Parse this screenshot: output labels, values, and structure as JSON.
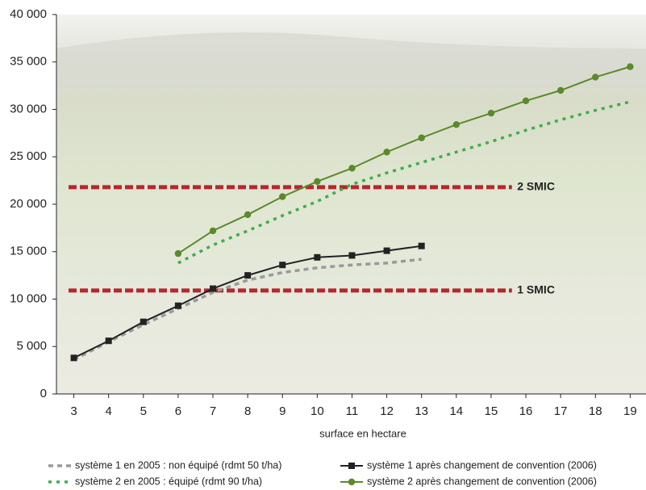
{
  "chart_data": {
    "type": "line",
    "x_label": "surface en hectare",
    "xlim": [
      2.5,
      19.2
    ],
    "xticks": [
      3,
      4,
      5,
      6,
      7,
      8,
      9,
      10,
      11,
      12,
      13,
      14,
      15,
      16,
      17,
      18,
      19
    ],
    "ylim": [
      0,
      40000
    ],
    "yticks": [
      0,
      {
        "value": 5000,
        "label": "5 000"
      },
      {
        "value": 10000,
        "label": "10 000"
      },
      {
        "value": 15000,
        "label": "15 000"
      },
      {
        "value": 20000,
        "label": "20 000"
      },
      {
        "value": 25000,
        "label": "25 000"
      },
      {
        "value": 30000,
        "label": "30 000"
      },
      {
        "value": 35000,
        "label": "35 000"
      },
      {
        "value": 40000,
        "label": "40 000"
      }
    ],
    "reference_lines": [
      {
        "label": "2 SMIC",
        "value": 21800,
        "color": "#b8262c"
      },
      {
        "label": "1 SMIC",
        "value": 10900,
        "color": "#b8262c"
      }
    ],
    "series": [
      {
        "name": "système 1 en 2005 : non équipé (rdmt 50 t/ha)",
        "color": "#9a9a9a",
        "dash": "6 5",
        "marker": "none",
        "x": [
          3,
          4,
          5,
          6,
          7,
          8,
          9,
          10,
          11,
          12,
          13
        ],
        "values": [
          3600,
          5500,
          7300,
          9000,
          10700,
          12000,
          12800,
          13300,
          13600,
          13800,
          14200
        ]
      },
      {
        "name": "système 2 en 2005 : équipé (rdmt 90 t/ha)",
        "color": "#3fae49",
        "dash": "4 6",
        "marker": "none",
        "x": [
          6,
          7,
          8,
          9,
          10,
          11,
          12,
          13,
          14,
          15,
          16,
          17,
          18,
          19
        ],
        "values": [
          13800,
          15700,
          17200,
          18800,
          20300,
          22100,
          23300,
          24400,
          25500,
          26600,
          27800,
          28900,
          29900,
          30800
        ]
      },
      {
        "name": "système 1 après changement de convention (2006)",
        "color": "#222222",
        "dash": "none",
        "marker": "square",
        "x": [
          3,
          4,
          5,
          6,
          7,
          8,
          9,
          10,
          11,
          12,
          13
        ],
        "values": [
          3800,
          5600,
          7600,
          9300,
          11100,
          12500,
          13600,
          14400,
          14600,
          15100,
          15600
        ]
      },
      {
        "name": "système 2 après changement de convention (2006)",
        "color": "#5a8a2a",
        "dash": "none",
        "marker": "circle",
        "x": [
          6,
          7,
          8,
          9,
          10,
          11,
          12,
          13,
          14,
          15,
          16,
          17,
          18,
          19
        ],
        "values": [
          14800,
          17200,
          18900,
          20800,
          22400,
          23800,
          25500,
          27000,
          28400,
          29600,
          30900,
          32000,
          33400,
          34500
        ]
      }
    ]
  }
}
